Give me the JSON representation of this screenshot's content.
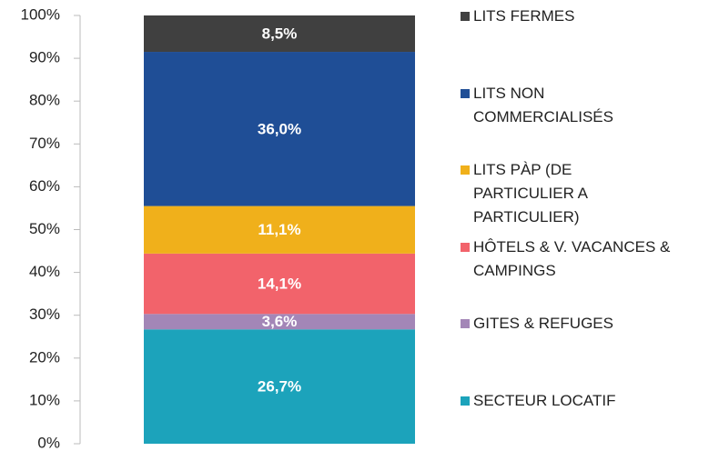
{
  "chart_data": {
    "type": "stacked_bar",
    "categories": [
      null
    ],
    "ylim": [
      0,
      100
    ],
    "yticks": [
      {
        "value": 0,
        "label": "0%"
      },
      {
        "value": 10,
        "label": "10%"
      },
      {
        "value": 20,
        "label": "20%"
      },
      {
        "value": 30,
        "label": "30%"
      },
      {
        "value": 40,
        "label": "40%"
      },
      {
        "value": 50,
        "label": "50%"
      },
      {
        "value": 60,
        "label": "60%"
      },
      {
        "value": 70,
        "label": "70%"
      },
      {
        "value": 80,
        "label": "80%"
      },
      {
        "value": 90,
        "label": "90%"
      },
      {
        "value": 100,
        "label": "100%"
      }
    ],
    "legend": "right",
    "series": [
      {
        "name": "SECTEUR LOCATIF",
        "color": "#1ca3bb",
        "values": [
          26.7
        ],
        "value_labels": [
          "26,7%"
        ]
      },
      {
        "name": "GITES & REFUGES",
        "color": "#a386b7",
        "values": [
          3.6
        ],
        "value_labels": [
          "3,6%"
        ]
      },
      {
        "name": "HÔTELS & V. VACANCES & CAMPINGS",
        "color": "#f2636b",
        "values": [
          14.1
        ],
        "value_labels": [
          "14,1%"
        ]
      },
      {
        "name": "LITS PÀP (DE PARTICULIER A PARTICULIER)",
        "color": "#f0b01b",
        "values": [
          11.1
        ],
        "value_labels": [
          "11,1%"
        ]
      },
      {
        "name": "LITS NON COMMERCIALISÉS",
        "color": "#1f4e96",
        "values": [
          36.0
        ],
        "value_labels": [
          "36,0%"
        ]
      },
      {
        "name": "LITS FERMES",
        "color": "#404040",
        "values": [
          8.5
        ],
        "value_labels": [
          "8,5%"
        ]
      }
    ]
  }
}
